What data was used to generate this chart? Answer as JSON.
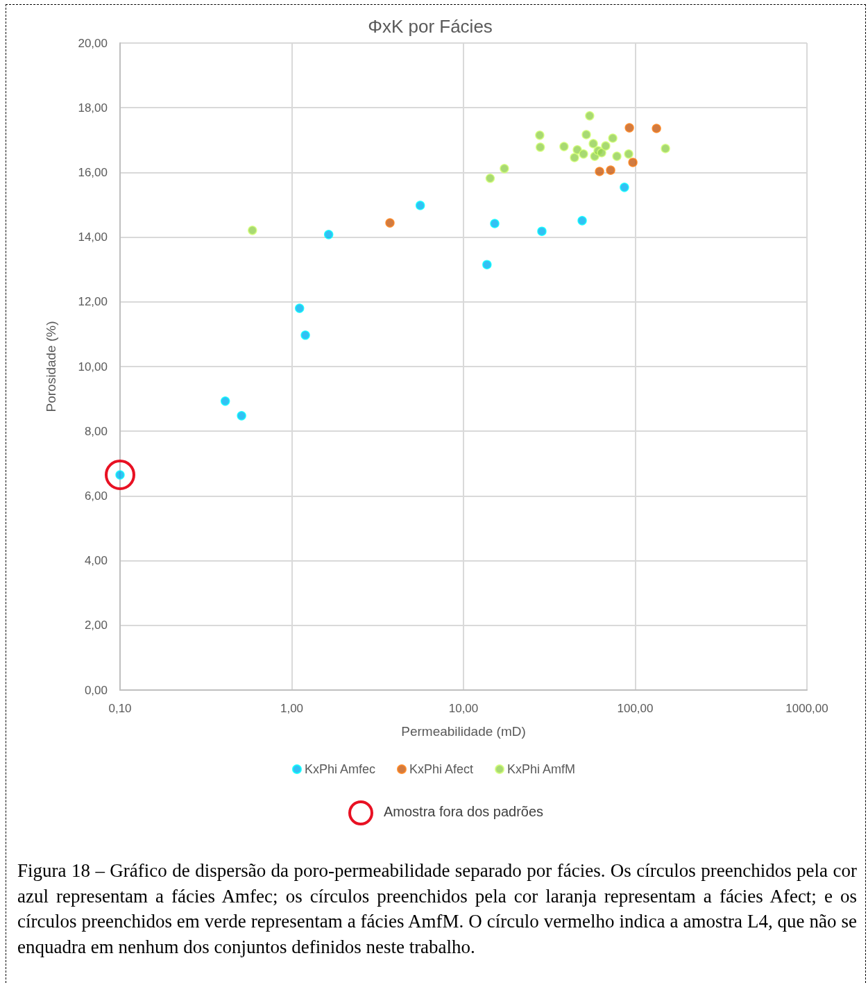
{
  "chart_data": {
    "type": "scatter",
    "title": "ΦxK por Fácies",
    "xlabel": "Permeabilidade (mD)",
    "ylabel": "Porosidade (%)",
    "log": "x",
    "grid": true,
    "legend": "bottom",
    "marker": "circle",
    "xlim": [
      0.1,
      1000
    ],
    "xticks": [
      {
        "value": 0.1,
        "label": "0,10"
      },
      {
        "value": 1,
        "label": "1,00"
      },
      {
        "value": 10,
        "label": "10,00"
      },
      {
        "value": 100,
        "label": "100,00"
      },
      {
        "value": 1000,
        "label": "1000,00"
      }
    ],
    "ylim": [
      0,
      20
    ],
    "yticks": [
      {
        "value": 0,
        "label": "0,00"
      },
      {
        "value": 2,
        "label": "2,00"
      },
      {
        "value": 4,
        "label": "4,00"
      },
      {
        "value": 6,
        "label": "6,00"
      },
      {
        "value": 8,
        "label": "8,00"
      },
      {
        "value": 10,
        "label": "10,00"
      },
      {
        "value": 12,
        "label": "12,00"
      },
      {
        "value": 14,
        "label": "14,00"
      },
      {
        "value": 16,
        "label": "16,00"
      },
      {
        "value": 18,
        "label": "18,00"
      },
      {
        "value": 20,
        "label": "20,00"
      }
    ],
    "series": [
      {
        "name": "KxPhi Amfec",
        "color": "#00b0f0",
        "x": [
          0.1,
          0.41,
          0.51,
          1.11,
          1.2,
          1.64,
          5.6,
          13.7,
          15.2,
          28.6,
          49.1,
          86.5
        ],
        "values": [
          6.65,
          8.93,
          8.48,
          11.8,
          10.97,
          14.08,
          14.98,
          13.15,
          14.42,
          14.18,
          14.51,
          15.54
        ]
      },
      {
        "name": "KxPhi Afect",
        "color": "#c55a11",
        "x": [
          3.73,
          62,
          71.9,
          92.5,
          96.9,
          133
        ],
        "values": [
          14.44,
          16.03,
          16.07,
          17.38,
          16.31,
          17.36
        ]
      },
      {
        "name": "KxPhi AmfM",
        "color": "#92d050",
        "x": [
          0.59,
          14.3,
          17.3,
          27.8,
          28,
          38.5,
          44.3,
          46,
          50,
          51.9,
          54.3,
          57,
          58.1,
          60.8,
          63.7,
          67.3,
          74,
          78.2,
          91.6,
          150
        ],
        "values": [
          14.21,
          15.82,
          16.12,
          17.15,
          16.78,
          16.8,
          16.46,
          16.7,
          16.57,
          17.17,
          17.75,
          16.89,
          16.5,
          16.67,
          16.61,
          16.82,
          17.06,
          16.5,
          16.57,
          16.74
        ]
      }
    ],
    "annotations": [
      "Amostra fora dos padrões",
      "Figura 18 – Gráfico de dispersão da poro-permeabilidade separado por fácies. Os círculos preenchidos pela cor azul representam a fácies Amfec; os círculos preenchidos pela cor laranja representam a fácies Afect; e os círculos preenchidos em verde representam a fácies AmfM. O círculo vermelho indica a amostra L4, que não se enquadra em nenhum dos conjuntos definidos neste trabalho."
    ]
  }
}
